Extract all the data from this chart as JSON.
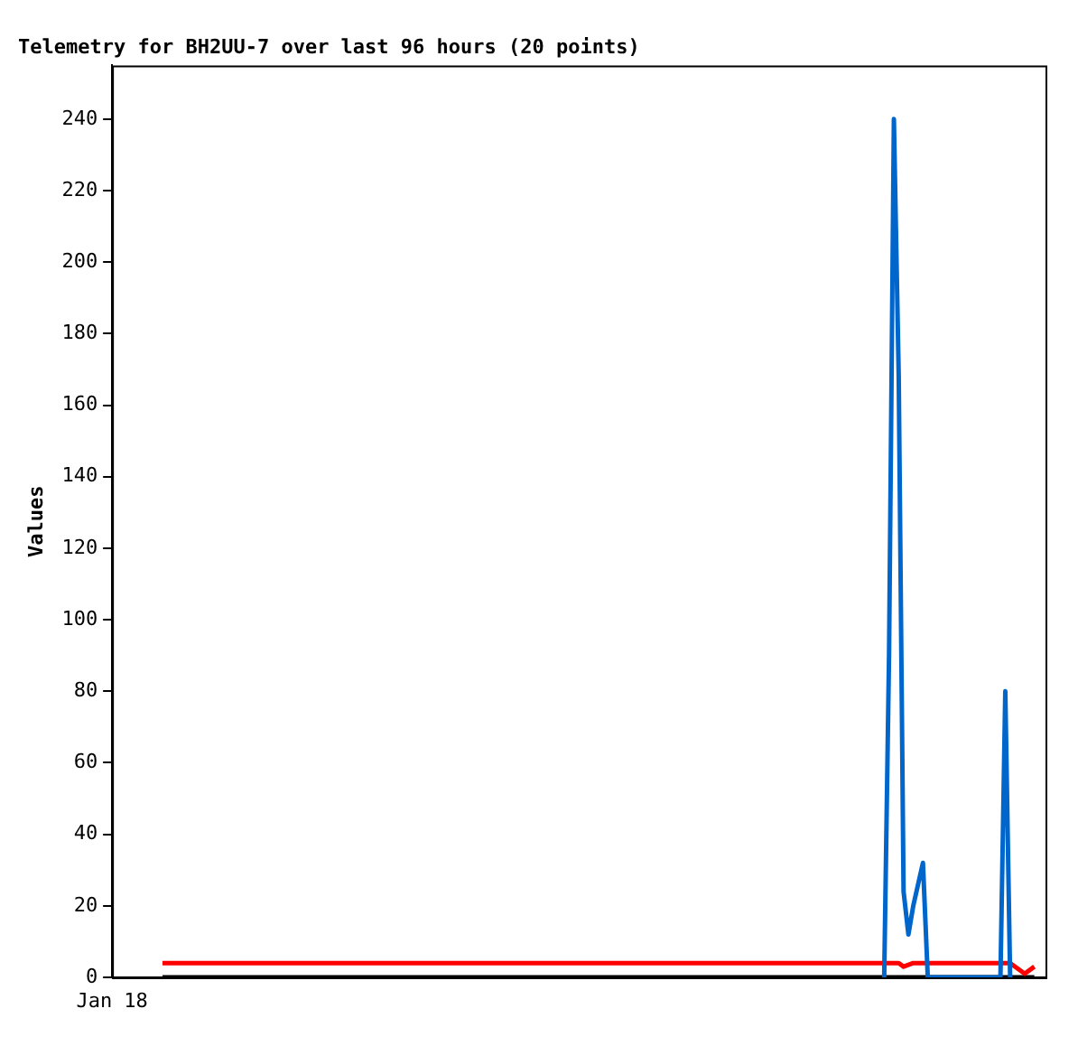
{
  "chart_data": {
    "type": "line",
    "title": "Telemetry for BH2UU-7 over last 96 hours (20 points)",
    "ylabel": "Values",
    "annotations": [
      "Jan 18"
    ],
    "categories": [
      null,
      null,
      null,
      null,
      null,
      null,
      null,
      null,
      null,
      null,
      null,
      null,
      null,
      null,
      null,
      null,
      null,
      null,
      null,
      null,
      null,
      null,
      null,
      null,
      null,
      null,
      null,
      null,
      null,
      null,
      null,
      null,
      null,
      null,
      null,
      null,
      null,
      null,
      null,
      null,
      null,
      null,
      null,
      null,
      null,
      null,
      null,
      null,
      null,
      null,
      null,
      null,
      null,
      null,
      null,
      null,
      null,
      null,
      null,
      null,
      null,
      null,
      null,
      null,
      null,
      null,
      null,
      null,
      null,
      null,
      null,
      null,
      null,
      null,
      null,
      null,
      null,
      null,
      null,
      null,
      null,
      null,
      null,
      null,
      null,
      null,
      null,
      null,
      null,
      null,
      null,
      null,
      null,
      null,
      null,
      null,
      null,
      null,
      null,
      null,
      null,
      null,
      null,
      null,
      null,
      null,
      null,
      null,
      null,
      null,
      null,
      null,
      null,
      null,
      null,
      null,
      null,
      null,
      null,
      null,
      null,
      null,
      null,
      null,
      null,
      null,
      null,
      null,
      null,
      null,
      null,
      null,
      null,
      null,
      null,
      null,
      null,
      null,
      null,
      null,
      null,
      null,
      null,
      null,
      null,
      null,
      null,
      null,
      null,
      null,
      null,
      null,
      null,
      null,
      null,
      null,
      null,
      null,
      null,
      null,
      null,
      null,
      null,
      null,
      null,
      null,
      null,
      null,
      null,
      null,
      null,
      null,
      null,
      null,
      null,
      null,
      null,
      null,
      null,
      null,
      null
    ],
    "ylim": [
      0,
      255
    ],
    "yticks": [
      0,
      20,
      40,
      60,
      80,
      100,
      120,
      140,
      160,
      180,
      200,
      220,
      240
    ],
    "grid": false,
    "legend": false,
    "marker": "none",
    "line_style": "solid",
    "series": [
      {
        "color": "#0066cc",
        "values": [
          null,
          null,
          null,
          null,
          null,
          null,
          null,
          null,
          null,
          null,
          null,
          null,
          null,
          null,
          null,
          null,
          null,
          null,
          null,
          null,
          null,
          null,
          null,
          null,
          null,
          null,
          null,
          null,
          null,
          null,
          null,
          null,
          null,
          null,
          null,
          null,
          null,
          null,
          null,
          null,
          null,
          null,
          null,
          null,
          null,
          null,
          null,
          null,
          null,
          null,
          null,
          null,
          null,
          null,
          null,
          null,
          null,
          null,
          null,
          null,
          null,
          null,
          null,
          null,
          null,
          null,
          null,
          null,
          null,
          null,
          null,
          null,
          null,
          null,
          null,
          null,
          null,
          null,
          null,
          null,
          null,
          null,
          null,
          null,
          null,
          null,
          null,
          null,
          null,
          null,
          null,
          null,
          null,
          null,
          null,
          null,
          null,
          null,
          null,
          null,
          null,
          null,
          null,
          null,
          null,
          null,
          null,
          null,
          null,
          null,
          null,
          null,
          null,
          null,
          null,
          null,
          null,
          null,
          null,
          null,
          null,
          null,
          null,
          null,
          null,
          null,
          null,
          null,
          null,
          null,
          null,
          null,
          null,
          null,
          null,
          null,
          null,
          null,
          null,
          null,
          null,
          null,
          null,
          null,
          null,
          null,
          null,
          null,
          null,
          0,
          90,
          240,
          168,
          24,
          12,
          20,
          26,
          32,
          0,
          null,
          null,
          null,
          null,
          null,
          null,
          null,
          null,
          null,
          null,
          null,
          null,
          null,
          null,
          0,
          80,
          0,
          null,
          null,
          null,
          null,
          null
        ]
      },
      {
        "color": "#ff0000",
        "values": [
          4,
          null,
          null,
          null,
          null,
          null,
          null,
          null,
          null,
          null,
          null,
          null,
          null,
          null,
          null,
          null,
          null,
          null,
          null,
          null,
          null,
          null,
          null,
          null,
          null,
          null,
          null,
          null,
          null,
          null,
          null,
          null,
          null,
          null,
          null,
          null,
          null,
          null,
          null,
          null,
          null,
          null,
          null,
          null,
          null,
          null,
          null,
          null,
          null,
          null,
          null,
          null,
          null,
          null,
          null,
          null,
          null,
          null,
          null,
          null,
          null,
          null,
          null,
          null,
          null,
          null,
          null,
          null,
          null,
          null,
          null,
          null,
          null,
          null,
          null,
          null,
          null,
          null,
          null,
          null,
          null,
          null,
          null,
          null,
          null,
          null,
          null,
          null,
          null,
          null,
          null,
          null,
          null,
          null,
          null,
          null,
          null,
          null,
          null,
          null,
          null,
          null,
          null,
          null,
          null,
          null,
          null,
          null,
          null,
          null,
          null,
          null,
          null,
          null,
          null,
          null,
          null,
          null,
          null,
          null,
          null,
          null,
          null,
          null,
          null,
          null,
          null,
          null,
          null,
          null,
          null,
          null,
          null,
          null,
          null,
          null,
          null,
          null,
          null,
          null,
          null,
          null,
          null,
          null,
          null,
          null,
          null,
          null,
          null,
          null,
          null,
          null,
          4,
          3,
          null,
          4,
          null,
          null,
          null,
          null,
          null,
          null,
          null,
          null,
          null,
          null,
          null,
          null,
          null,
          null,
          null,
          null,
          null,
          null,
          null,
          4,
          null,
          2,
          1,
          null,
          3
        ]
      },
      {
        "color": "#000000",
        "values": [
          0,
          null,
          null,
          null,
          null,
          null,
          null,
          null,
          null,
          null,
          null,
          null,
          null,
          null,
          null,
          null,
          null,
          null,
          null,
          null,
          null,
          null,
          null,
          null,
          null,
          null,
          null,
          null,
          null,
          null,
          null,
          null,
          null,
          null,
          null,
          null,
          null,
          null,
          null,
          null,
          null,
          null,
          null,
          null,
          null,
          null,
          null,
          null,
          null,
          null,
          null,
          null,
          null,
          null,
          null,
          null,
          null,
          null,
          null,
          null,
          null,
          null,
          null,
          null,
          null,
          null,
          null,
          null,
          null,
          null,
          null,
          null,
          null,
          null,
          null,
          null,
          null,
          null,
          null,
          null,
          null,
          null,
          null,
          null,
          null,
          null,
          null,
          null,
          null,
          null,
          null,
          null,
          null,
          null,
          null,
          null,
          null,
          null,
          null,
          null,
          null,
          null,
          null,
          null,
          null,
          null,
          null,
          null,
          null,
          null,
          null,
          null,
          null,
          null,
          null,
          null,
          null,
          null,
          null,
          null,
          null,
          null,
          null,
          null,
          null,
          null,
          null,
          null,
          null,
          null,
          null,
          null,
          null,
          null,
          null,
          null,
          null,
          null,
          null,
          null,
          null,
          null,
          null,
          null,
          null,
          null,
          null,
          null,
          null,
          null,
          null,
          null,
          null,
          null,
          null,
          null,
          null,
          null,
          null,
          null,
          null,
          null,
          null,
          null,
          null,
          null,
          null,
          null,
          null,
          null,
          null,
          null,
          null,
          null,
          null,
          null,
          null,
          null,
          null,
          null,
          0
        ]
      }
    ]
  }
}
